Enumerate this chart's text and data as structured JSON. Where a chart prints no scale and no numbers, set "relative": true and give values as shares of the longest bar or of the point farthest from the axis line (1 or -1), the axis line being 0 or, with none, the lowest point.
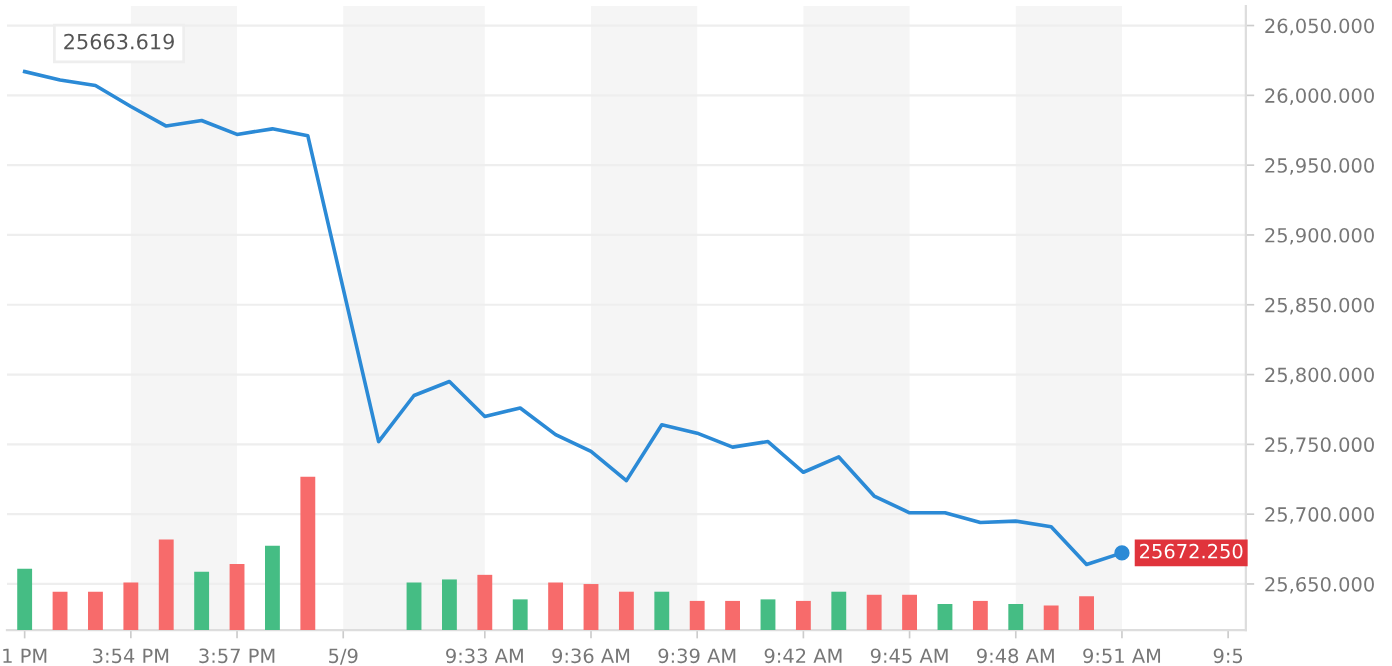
{
  "chart_data": [
    {
      "type": "line",
      "categories": [
        "1 PM",
        null,
        null,
        "3:54 PM",
        null,
        null,
        "3:57 PM",
        null,
        null,
        "5/9",
        null,
        null,
        null,
        "9:33 AM",
        null,
        null,
        "9:36 AM",
        null,
        null,
        "9:39 AM",
        null,
        null,
        "9:42 AM",
        null,
        null,
        "9:45 AM",
        null,
        null,
        "9:48 AM",
        null,
        null,
        "9:51 AM",
        null,
        null,
        "9:5"
      ],
      "series": [
        {
          "color": "#2b8ad6",
          "values": [
            26017,
            26011,
            26007,
            25992,
            25978,
            25982,
            25972,
            25976,
            25971,
            null,
            25752,
            25785,
            25795,
            25770,
            25776,
            25757,
            25745,
            25724,
            25764,
            25758,
            25748,
            25752,
            25730,
            25741,
            25713,
            25701,
            25701,
            25694,
            25695,
            25691,
            25664,
            25672.25,
            null,
            null,
            null
          ],
          "value_labels": [
            null,
            null,
            null,
            null,
            null,
            null,
            null,
            null,
            null,
            null,
            null,
            null,
            null,
            null,
            null,
            null,
            null,
            null,
            null,
            null,
            null,
            null,
            null,
            null,
            null,
            null,
            null,
            null,
            null,
            null,
            null,
            "25672.250",
            null,
            null,
            null
          ]
        }
      ],
      "ylim": [
        25617,
        26064
      ],
      "yticks": [
        {
          "value": 25650,
          "label": "25,650.000"
        },
        {
          "value": 25700,
          "label": "25,700.000"
        },
        {
          "value": 25750,
          "label": "25,750.000"
        },
        {
          "value": 25800,
          "label": "25,800.000"
        },
        {
          "value": 25850,
          "label": "25,850.000"
        },
        {
          "value": 25900,
          "label": "25,900.000"
        },
        {
          "value": 25950,
          "label": "25,950.000"
        },
        {
          "value": 26000,
          "label": "26,000.000"
        },
        {
          "value": 26050,
          "label": "26,050.000"
        }
      ],
      "grid": "y",
      "bands": [
        {
          "axis": "x",
          "from": "3:54 PM",
          "to": "3:57 PM",
          "color": "#f5f5f5"
        },
        {
          "axis": "x",
          "from": "5/9",
          "to": "9:33 AM",
          "color": "#f5f5f5"
        },
        {
          "axis": "x",
          "from": "9:36 AM",
          "to": "9:39 AM",
          "color": "#f5f5f5"
        },
        {
          "axis": "x",
          "from": "9:42 AM",
          "to": "9:45 AM",
          "color": "#f5f5f5"
        },
        {
          "axis": "x",
          "from": "9:48 AM",
          "to": "9:51 AM",
          "color": "#f5f5f5"
        }
      ],
      "annotations": [
        "25663.619"
      ]
    },
    {
      "type": "bar",
      "relative": true,
      "categories": [
        null,
        null,
        null,
        null,
        null,
        null,
        null,
        null,
        null,
        null,
        null,
        null,
        null,
        null,
        null,
        null,
        null,
        null,
        null,
        null,
        null,
        null,
        null,
        null,
        null,
        null,
        null,
        null,
        null,
        null,
        null,
        null,
        null,
        null,
        null
      ],
      "values": [
        0.4,
        0.25,
        0.25,
        0.31,
        0.59,
        0.38,
        0.43,
        0.55,
        1,
        null,
        null,
        0.31,
        0.33,
        0.36,
        0.2,
        0.31,
        0.3,
        0.25,
        0.25,
        0.19,
        0.19,
        0.2,
        0.19,
        0.25,
        0.23,
        0.23,
        0.17,
        0.19,
        0.17,
        0.16,
        0.22,
        null,
        null,
        null,
        null
      ],
      "colors": [
        "#45bd84",
        "#f76b6b",
        "#f76b6b",
        "#f76b6b",
        "#f76b6b",
        "#45bd84",
        "#f76b6b",
        "#45bd84",
        "#f76b6b",
        null,
        null,
        "#45bd84",
        "#45bd84",
        "#f76b6b",
        "#45bd84",
        "#f76b6b",
        "#f76b6b",
        "#f76b6b",
        "#45bd84",
        "#f76b6b",
        "#f76b6b",
        "#45bd84",
        "#f76b6b",
        "#45bd84",
        "#f76b6b",
        "#f76b6b",
        "#45bd84",
        "#f76b6b",
        "#45bd84",
        "#f76b6b",
        "#f76b6b",
        null,
        null,
        null,
        null
      ]
    }
  ]
}
